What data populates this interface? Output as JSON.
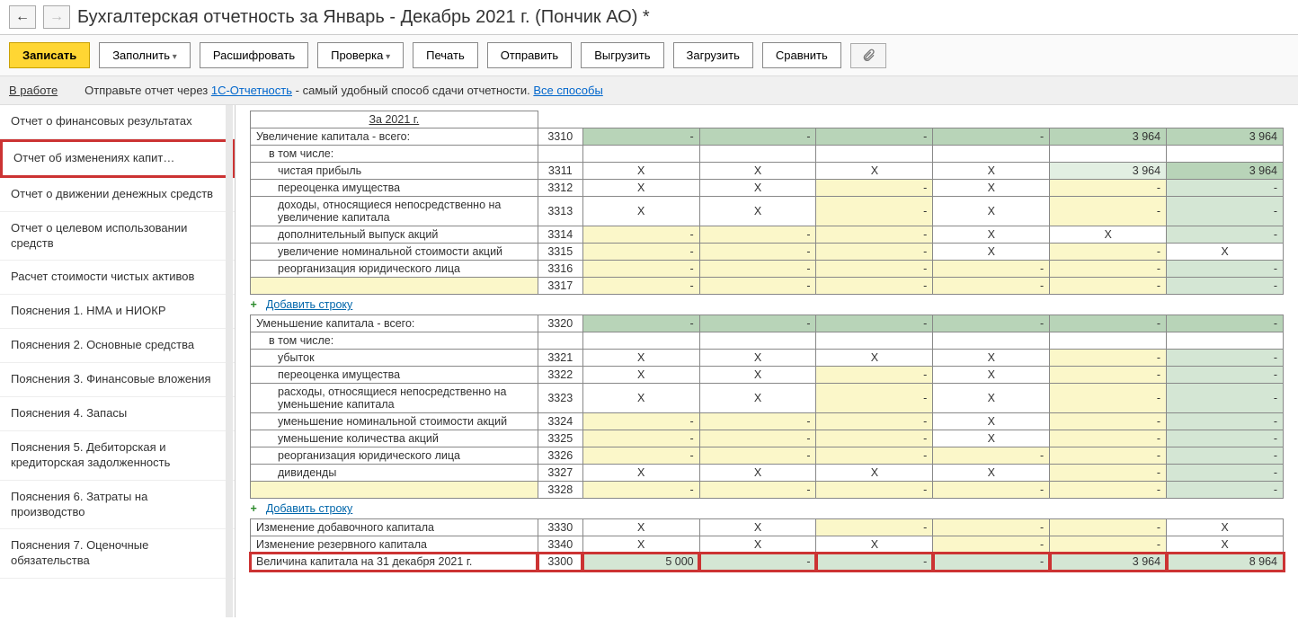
{
  "header": {
    "title": "Бухгалтерская отчетность за Январь - Декабрь 2021 г. (Пончик АО) *"
  },
  "toolbar": {
    "write": "Записать",
    "fill": "Заполнить",
    "decode": "Расшифровать",
    "check": "Проверка",
    "print": "Печать",
    "send": "Отправить",
    "export": "Выгрузить",
    "import": "Загрузить",
    "compare": "Сравнить"
  },
  "status": {
    "state": "В работе",
    "prefix": "Отправьте отчет через ",
    "link1": "1С-Отчетность",
    "mid": " - самый удобный способ сдачи отчетности. ",
    "link2": "Все способы"
  },
  "sidebar": {
    "items": [
      "Отчет о финансовых результатах",
      "Отчет об изменениях капит…",
      "Отчет о движении денежных средств",
      "Отчет о целевом использовании средств",
      "Расчет стоимости чистых активов",
      "Пояснения 1. НМА и НИОКР",
      "Пояснения 2. Основные средства",
      "Пояснения 3. Финансовые вложения",
      "Пояснения 4. Запасы",
      "Пояснения 5. Дебиторская и кредиторская задолженность",
      "Пояснения 6. Затраты на производство",
      "Пояснения 7. Оценочные обязательства"
    ],
    "active_index": 1
  },
  "table": {
    "year_header": "За 2021 г.",
    "add_row": "Добавить строку",
    "colors": {
      "green_dark": "#b8d4b8",
      "green_light": "#d4e6d4",
      "green_vlight": "#e2efe2",
      "yellow": "#fbf7c9",
      "white": "#ffffff",
      "highlight_border": "#cc3333"
    },
    "rows": [
      {
        "name": "Увеличение капитала - всего:",
        "code": "3310",
        "cells": [
          {
            "v": "-",
            "bg": "green_dark"
          },
          {
            "v": "-",
            "bg": "green_dark"
          },
          {
            "v": "-",
            "bg": "green_dark"
          },
          {
            "v": "-",
            "bg": "green_dark"
          },
          {
            "v": "3 964",
            "bg": "green_dark"
          },
          {
            "v": "3 964",
            "bg": "green_dark"
          }
        ],
        "indent": 0
      },
      {
        "name": "в том числе:",
        "code": "",
        "cells": [],
        "indent": 1,
        "noborder_cells": true
      },
      {
        "name": "чистая прибыль",
        "code": "3311",
        "cells": [
          {
            "v": "Х",
            "bg": "white",
            "x": true
          },
          {
            "v": "Х",
            "bg": "white",
            "x": true
          },
          {
            "v": "Х",
            "bg": "white",
            "x": true
          },
          {
            "v": "Х",
            "bg": "white",
            "x": true
          },
          {
            "v": "3 964",
            "bg": "green_vlight"
          },
          {
            "v": "3 964",
            "bg": "green_dark"
          }
        ],
        "indent": 2
      },
      {
        "name": "переоценка имущества",
        "code": "3312",
        "cells": [
          {
            "v": "Х",
            "bg": "white",
            "x": true
          },
          {
            "v": "Х",
            "bg": "white",
            "x": true
          },
          {
            "v": "-",
            "bg": "yellow"
          },
          {
            "v": "Х",
            "bg": "white",
            "x": true
          },
          {
            "v": "-",
            "bg": "yellow"
          },
          {
            "v": "-",
            "bg": "green_light"
          }
        ],
        "indent": 2
      },
      {
        "name": "доходы, относящиеся непосредственно на увеличение капитала",
        "code": "3313",
        "cells": [
          {
            "v": "Х",
            "bg": "white",
            "x": true
          },
          {
            "v": "Х",
            "bg": "white",
            "x": true
          },
          {
            "v": "-",
            "bg": "yellow"
          },
          {
            "v": "Х",
            "bg": "white",
            "x": true
          },
          {
            "v": "-",
            "bg": "yellow"
          },
          {
            "v": "-",
            "bg": "green_light"
          }
        ],
        "indent": 2
      },
      {
        "name": "дополнительный выпуск акций",
        "code": "3314",
        "cells": [
          {
            "v": "-",
            "bg": "yellow"
          },
          {
            "v": "-",
            "bg": "yellow"
          },
          {
            "v": "-",
            "bg": "yellow"
          },
          {
            "v": "Х",
            "bg": "white",
            "x": true
          },
          {
            "v": "Х",
            "bg": "white",
            "x": true
          },
          {
            "v": "-",
            "bg": "green_light"
          }
        ],
        "indent": 2
      },
      {
        "name": "увеличение номинальной стоимости акций",
        "code": "3315",
        "cells": [
          {
            "v": "-",
            "bg": "yellow"
          },
          {
            "v": "-",
            "bg": "yellow"
          },
          {
            "v": "-",
            "bg": "yellow"
          },
          {
            "v": "Х",
            "bg": "white",
            "x": true
          },
          {
            "v": "-",
            "bg": "yellow"
          },
          {
            "v": "Х",
            "bg": "white",
            "x": true
          }
        ],
        "indent": 2
      },
      {
        "name": "реорганизация юридического лица",
        "code": "3316",
        "cells": [
          {
            "v": "-",
            "bg": "yellow"
          },
          {
            "v": "-",
            "bg": "yellow"
          },
          {
            "v": "-",
            "bg": "yellow"
          },
          {
            "v": "-",
            "bg": "yellow"
          },
          {
            "v": "-",
            "bg": "yellow"
          },
          {
            "v": "-",
            "bg": "green_light"
          }
        ],
        "indent": 2
      },
      {
        "name": "",
        "code": "3317",
        "cells": [
          {
            "v": "-",
            "bg": "yellow"
          },
          {
            "v": "-",
            "bg": "yellow"
          },
          {
            "v": "-",
            "bg": "yellow"
          },
          {
            "v": "-",
            "bg": "yellow"
          },
          {
            "v": "-",
            "bg": "yellow"
          },
          {
            "v": "-",
            "bg": "green_light"
          }
        ],
        "indent": 2,
        "name_bg": "yellow"
      },
      {
        "addrow": true
      },
      {
        "name": "Уменьшение капитала - всего:",
        "code": "3320",
        "cells": [
          {
            "v": "-",
            "bg": "green_dark"
          },
          {
            "v": "-",
            "bg": "green_dark"
          },
          {
            "v": "-",
            "bg": "green_dark"
          },
          {
            "v": "-",
            "bg": "green_dark"
          },
          {
            "v": "-",
            "bg": "green_dark"
          },
          {
            "v": "-",
            "bg": "green_dark"
          }
        ],
        "indent": 0
      },
      {
        "name": "в том числе:",
        "code": "",
        "cells": [],
        "indent": 1,
        "noborder_cells": true
      },
      {
        "name": "убыток",
        "code": "3321",
        "cells": [
          {
            "v": "Х",
            "bg": "white",
            "x": true
          },
          {
            "v": "Х",
            "bg": "white",
            "x": true
          },
          {
            "v": "Х",
            "bg": "white",
            "x": true
          },
          {
            "v": "Х",
            "bg": "white",
            "x": true
          },
          {
            "v": "-",
            "bg": "yellow"
          },
          {
            "v": "-",
            "bg": "green_light"
          }
        ],
        "indent": 2
      },
      {
        "name": "переоценка имущества",
        "code": "3322",
        "cells": [
          {
            "v": "Х",
            "bg": "white",
            "x": true
          },
          {
            "v": "Х",
            "bg": "white",
            "x": true
          },
          {
            "v": "-",
            "bg": "yellow"
          },
          {
            "v": "Х",
            "bg": "white",
            "x": true
          },
          {
            "v": "-",
            "bg": "yellow"
          },
          {
            "v": "-",
            "bg": "green_light"
          }
        ],
        "indent": 2
      },
      {
        "name": "расходы, относящиеся непосредственно на уменьшение капитала",
        "code": "3323",
        "cells": [
          {
            "v": "Х",
            "bg": "white",
            "x": true
          },
          {
            "v": "Х",
            "bg": "white",
            "x": true
          },
          {
            "v": "-",
            "bg": "yellow"
          },
          {
            "v": "Х",
            "bg": "white",
            "x": true
          },
          {
            "v": "-",
            "bg": "yellow"
          },
          {
            "v": "-",
            "bg": "green_light"
          }
        ],
        "indent": 2
      },
      {
        "name": "уменьшение номинальной стоимости акций",
        "code": "3324",
        "cells": [
          {
            "v": "-",
            "bg": "yellow"
          },
          {
            "v": "-",
            "bg": "yellow"
          },
          {
            "v": "-",
            "bg": "yellow"
          },
          {
            "v": "Х",
            "bg": "white",
            "x": true
          },
          {
            "v": "-",
            "bg": "yellow"
          },
          {
            "v": "-",
            "bg": "green_light"
          }
        ],
        "indent": 2
      },
      {
        "name": "уменьшение количества акций",
        "code": "3325",
        "cells": [
          {
            "v": "-",
            "bg": "yellow"
          },
          {
            "v": "-",
            "bg": "yellow"
          },
          {
            "v": "-",
            "bg": "yellow"
          },
          {
            "v": "Х",
            "bg": "white",
            "x": true
          },
          {
            "v": "-",
            "bg": "yellow"
          },
          {
            "v": "-",
            "bg": "green_light"
          }
        ],
        "indent": 2
      },
      {
        "name": "реорганизация юридического лица",
        "code": "3326",
        "cells": [
          {
            "v": "-",
            "bg": "yellow"
          },
          {
            "v": "-",
            "bg": "yellow"
          },
          {
            "v": "-",
            "bg": "yellow"
          },
          {
            "v": "-",
            "bg": "yellow"
          },
          {
            "v": "-",
            "bg": "yellow"
          },
          {
            "v": "-",
            "bg": "green_light"
          }
        ],
        "indent": 2
      },
      {
        "name": "дивиденды",
        "code": "3327",
        "cells": [
          {
            "v": "Х",
            "bg": "white",
            "x": true
          },
          {
            "v": "Х",
            "bg": "white",
            "x": true
          },
          {
            "v": "Х",
            "bg": "white",
            "x": true
          },
          {
            "v": "Х",
            "bg": "white",
            "x": true
          },
          {
            "v": "-",
            "bg": "yellow"
          },
          {
            "v": "-",
            "bg": "green_light"
          }
        ],
        "indent": 2
      },
      {
        "name": "",
        "code": "3328",
        "cells": [
          {
            "v": "-",
            "bg": "yellow"
          },
          {
            "v": "-",
            "bg": "yellow"
          },
          {
            "v": "-",
            "bg": "yellow"
          },
          {
            "v": "-",
            "bg": "yellow"
          },
          {
            "v": "-",
            "bg": "yellow"
          },
          {
            "v": "-",
            "bg": "green_light"
          }
        ],
        "indent": 2,
        "name_bg": "yellow"
      },
      {
        "addrow": true
      },
      {
        "name": "Изменение добавочного капитала",
        "code": "3330",
        "cells": [
          {
            "v": "Х",
            "bg": "white",
            "x": true
          },
          {
            "v": "Х",
            "bg": "white",
            "x": true
          },
          {
            "v": "-",
            "bg": "yellow"
          },
          {
            "v": "-",
            "bg": "yellow"
          },
          {
            "v": "-",
            "bg": "yellow"
          },
          {
            "v": "Х",
            "bg": "white",
            "x": true
          }
        ],
        "indent": 0
      },
      {
        "name": "Изменение резервного капитала",
        "code": "3340",
        "cells": [
          {
            "v": "Х",
            "bg": "white",
            "x": true
          },
          {
            "v": "Х",
            "bg": "white",
            "x": true
          },
          {
            "v": "Х",
            "bg": "white",
            "x": true
          },
          {
            "v": "-",
            "bg": "yellow"
          },
          {
            "v": "-",
            "bg": "yellow"
          },
          {
            "v": "Х",
            "bg": "white",
            "x": true
          }
        ],
        "indent": 0
      },
      {
        "name": "Величина капитала на 31 декабря 2021 г.",
        "code": "3300",
        "cells": [
          {
            "v": "5 000",
            "bg": "green_light"
          },
          {
            "v": "-",
            "bg": "green_light"
          },
          {
            "v": "-",
            "bg": "green_light"
          },
          {
            "v": "-",
            "bg": "green_light"
          },
          {
            "v": "3 964",
            "bg": "green_light"
          },
          {
            "v": "8 964",
            "bg": "green_light"
          }
        ],
        "indent": 0,
        "highlight": true
      }
    ]
  }
}
